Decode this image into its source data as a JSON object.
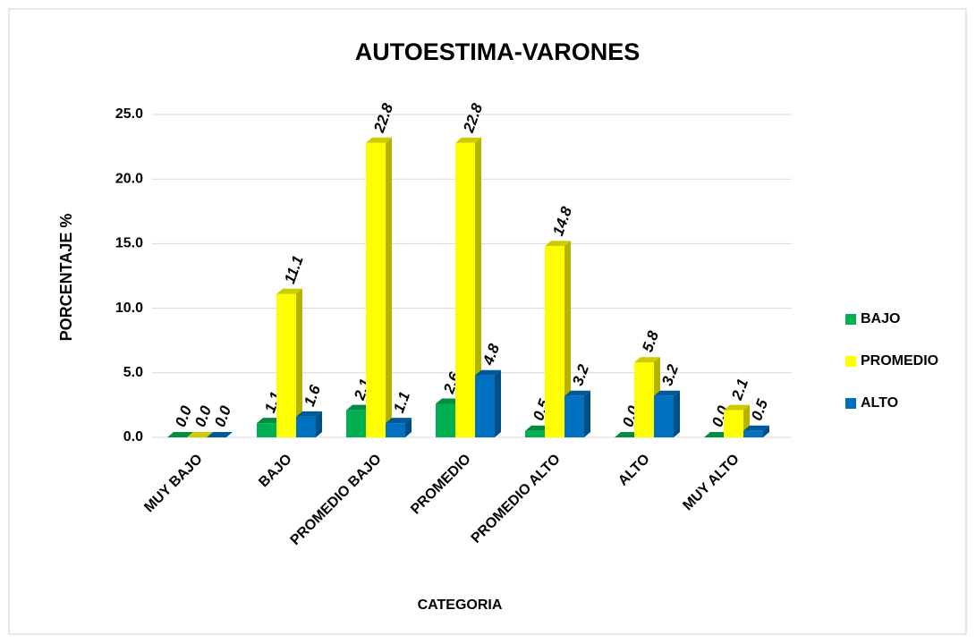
{
  "chart_data": {
    "type": "bar3d",
    "title": "AUTOESTIMA-VARONES",
    "x_label": "CATEGORIA",
    "y_label": "PORCENTAJE %",
    "categories": [
      "MUY BAJO",
      "BAJO",
      "PROMEDIO BAJO",
      "PROMEDIO",
      "PROMEDIO ALTO",
      "ALTO",
      "MUY ALTO"
    ],
    "series": [
      {
        "name": "BAJO",
        "color": "#00b050",
        "values": [
          0.0,
          1.1,
          2.1,
          2.6,
          0.5,
          0.0,
          0.0
        ],
        "value_labels": [
          "0.0",
          "1.1",
          "2.1",
          "2.6",
          "0.5",
          "0.0",
          "0.0"
        ]
      },
      {
        "name": "PROMEDIO",
        "color": "#ffff00",
        "values": [
          0.0,
          11.1,
          22.8,
          22.8,
          14.8,
          5.8,
          2.1
        ],
        "value_labels": [
          "0.0",
          "11.1",
          "22.8",
          "22.8",
          "14.8",
          "5.8",
          "2.1"
        ]
      },
      {
        "name": "ALTO",
        "color": "#0070c0",
        "values": [
          0.0,
          1.6,
          1.1,
          4.8,
          3.2,
          3.2,
          0.5
        ],
        "value_labels": [
          "0.0",
          "1.6",
          "1.1",
          "4.8",
          "3.2",
          "3.2",
          "0.5"
        ]
      }
    ],
    "ylim": [
      0,
      25
    ],
    "yticks": [
      {
        "value": 0,
        "label": "0.0"
      },
      {
        "value": 5,
        "label": "5.0"
      },
      {
        "value": 10,
        "label": "10.0"
      },
      {
        "value": 15,
        "label": "15.0"
      },
      {
        "value": 20,
        "label": "20.0"
      },
      {
        "value": 25,
        "label": "25.0"
      }
    ],
    "grid": true,
    "legend": "right"
  }
}
